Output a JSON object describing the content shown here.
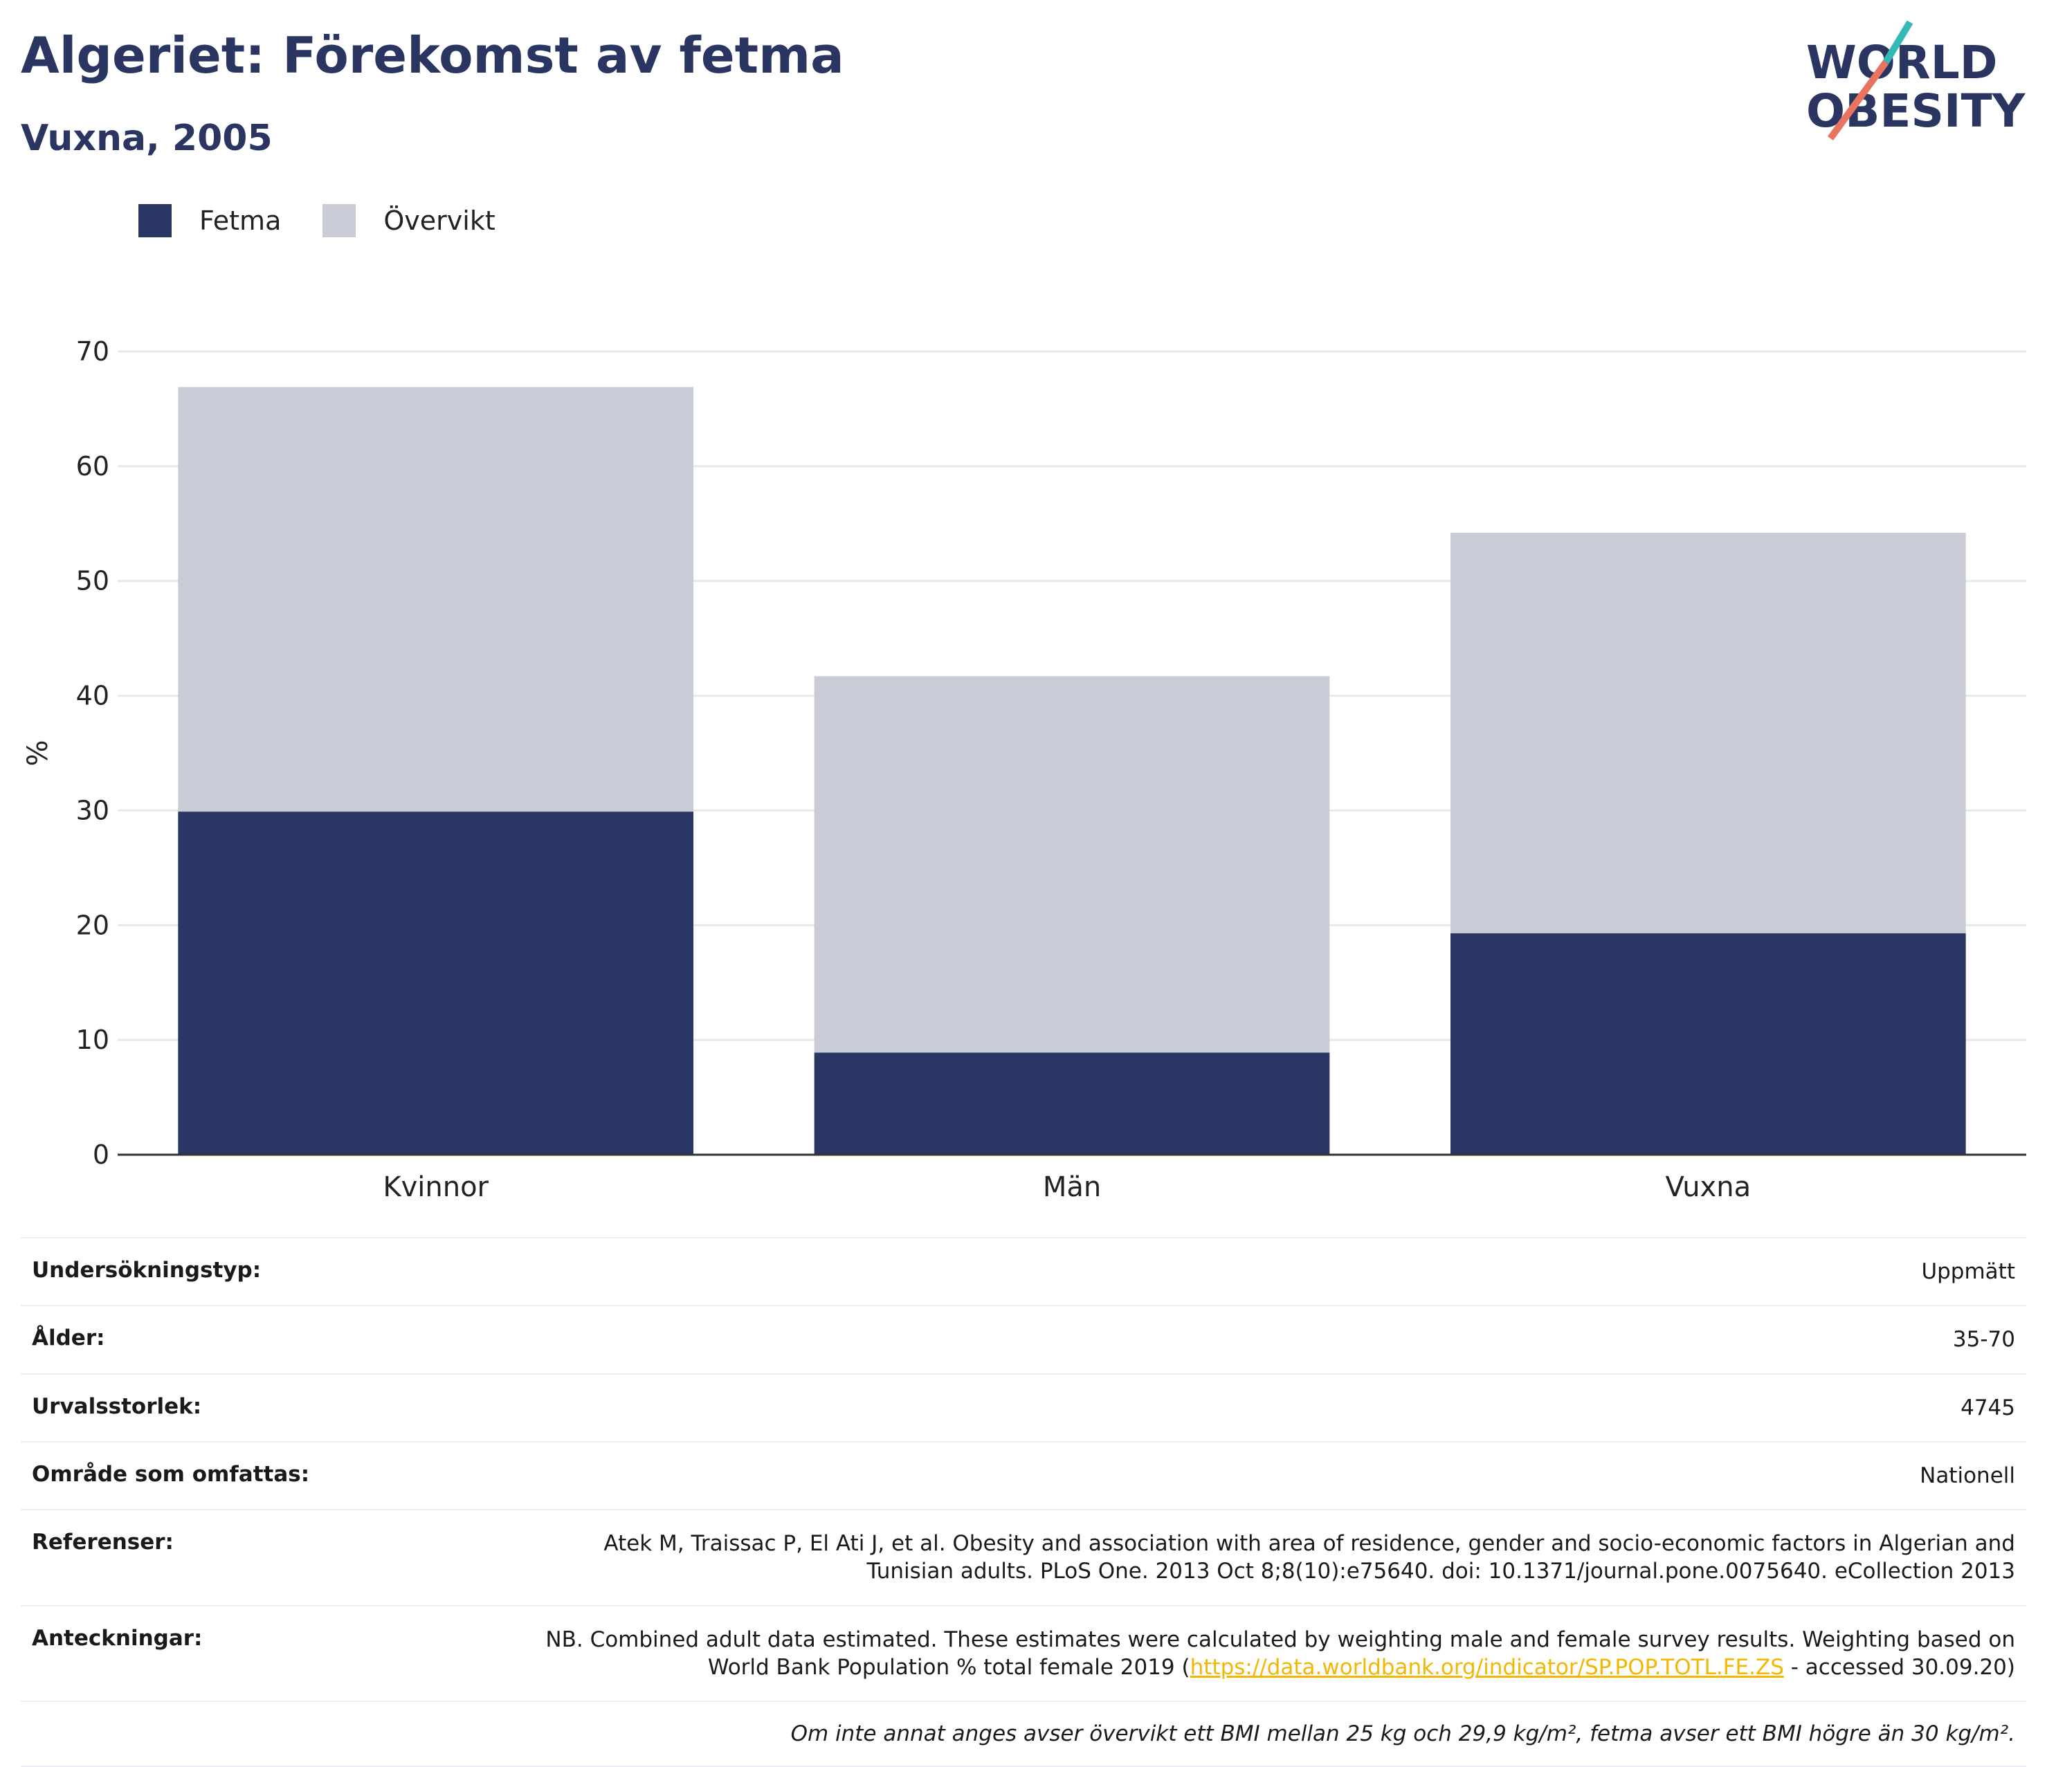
{
  "header": {
    "title": "Algeriet: Förekomst av fetma",
    "subtitle": "Vuxna, 2005"
  },
  "logo": {
    "line1": "WORLD",
    "line2": "OBESITY",
    "accent_teal": "#35b8b8",
    "accent_coral": "#e8735f"
  },
  "legend": {
    "items": [
      "Fetma",
      "Övervikt"
    ]
  },
  "colors": {
    "fetma": "#2a3663",
    "overvikt": "#c9cbd6",
    "title": "#2a3561",
    "grid": "#e6e8ee"
  },
  "chart_data": {
    "type": "bar",
    "stacked": true,
    "categories": [
      "Kvinnor",
      "Män",
      "Vuxna"
    ],
    "series": [
      {
        "name": "Fetma",
        "values": [
          29.9,
          8.9,
          19.3
        ]
      },
      {
        "name": "Övervikt",
        "values": [
          37.0,
          32.8,
          34.9
        ]
      }
    ],
    "ylabel": "%",
    "ylim": [
      0,
      70
    ],
    "yticks": [
      0,
      10,
      20,
      30,
      40,
      50,
      60,
      70
    ],
    "grid": true,
    "legend_position": "top-left"
  },
  "meta": {
    "rows": [
      {
        "label": "Undersökningstyp:",
        "value": "Uppmätt"
      },
      {
        "label": "Ålder:",
        "value": "35-70"
      },
      {
        "label": "Urvalsstorlek:",
        "value": "4745"
      },
      {
        "label": "Område som omfattas:",
        "value": "Nationell"
      },
      {
        "label": "Referenser:",
        "value": "Atek M, Traissac P, El Ati J, et al. Obesity and association with area of residence, gender and socio-economic factors in Algerian and Tunisian adults. PLoS One. 2013 Oct 8;8(10):e75640. doi: 10.1371/journal.pone.0075640. eCollection 2013"
      }
    ],
    "notes": {
      "label": "Anteckningar:",
      "pre": "NB. Combined adult data estimated. These estimates were calculated by weighting male and female survey results. Weighting based on World Bank Population % total female 2019 (",
      "link": "https://data.worldbank.org/indicator/SP.POP.TOTL.FE.ZS",
      "post": " - accessed 30.09.20)"
    },
    "footnote": "Om inte annat anges avser övervikt ett BMI mellan 25 kg och 29,9 kg/m², fetma avser ett BMI högre än 30 kg/m²."
  }
}
